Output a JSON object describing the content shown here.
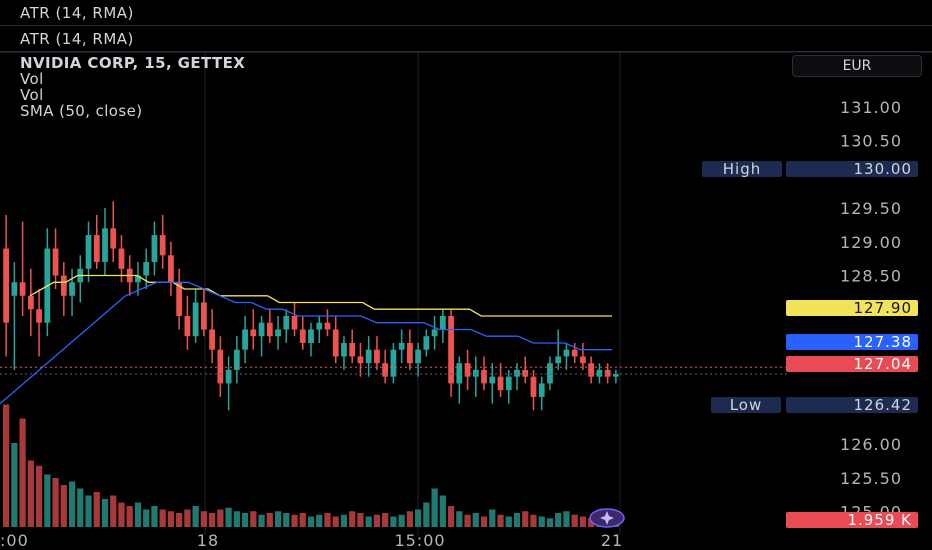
{
  "indicators": {
    "atr_1": "ATR (14, RMA)",
    "atr_2": "ATR (14, RMA)"
  },
  "legend": {
    "symbol": "NVIDIA CORP, 15, GETTEX",
    "vol_1": "Vol",
    "vol_2": "Vol",
    "sma": "SMA (50, close)"
  },
  "currency_button": "EUR",
  "badges": {
    "high_label": "High",
    "high_value": "130.00",
    "low_label": "Low",
    "low_value": "126.42",
    "sma_value": "127.90",
    "ma_value": "127.38",
    "last_value": "127.04",
    "volume_value": "1.959 K"
  },
  "colors": {
    "up": "#26a69a",
    "down": "#ef5350",
    "sma": "#f2e35a",
    "ma_blue": "#2962ff",
    "volume_up": "#1f7a72",
    "volume_down": "#a8393a",
    "badge_high_low": "#1c2b4f",
    "badge_sma": "#f2e35a",
    "badge_ma": "#2962ff",
    "badge_last": "#e84b54"
  },
  "chart_data": {
    "type": "candlestick",
    "y_ticks": [
      "131.00",
      "130.50",
      "129.50",
      "129.00",
      "128.50",
      "127.50",
      "126.00",
      "125.50",
      "125.00"
    ],
    "x_ticks": [
      ":00",
      "18",
      "15:00",
      "21"
    ],
    "ylim": [
      124.8,
      131.4
    ],
    "high": 130.0,
    "low": 126.42,
    "last": 127.04,
    "candles": [
      [
        128.9,
        129.4,
        127.3,
        127.8
      ],
      [
        128.2,
        128.7,
        127.1,
        128.4
      ],
      [
        128.4,
        129.3,
        127.9,
        128.2
      ],
      [
        128.2,
        128.6,
        127.6,
        128.0
      ],
      [
        128.0,
        128.3,
        127.3,
        127.8
      ],
      [
        127.8,
        129.2,
        127.6,
        128.9
      ],
      [
        128.9,
        129.2,
        128.3,
        128.5
      ],
      [
        128.5,
        128.7,
        127.9,
        128.2
      ],
      [
        128.2,
        128.6,
        127.9,
        128.4
      ],
      [
        128.4,
        128.8,
        128.1,
        128.6
      ],
      [
        128.6,
        129.3,
        128.4,
        129.1
      ],
      [
        129.1,
        129.4,
        128.6,
        128.7
      ],
      [
        128.7,
        129.5,
        128.5,
        129.2
      ],
      [
        129.2,
        129.6,
        128.7,
        128.9
      ],
      [
        128.9,
        129.1,
        128.4,
        128.6
      ],
      [
        128.6,
        128.8,
        128.2,
        128.4
      ],
      [
        128.4,
        128.7,
        128.2,
        128.5
      ],
      [
        128.5,
        128.9,
        128.3,
        128.7
      ],
      [
        128.7,
        129.3,
        128.5,
        129.1
      ],
      [
        129.1,
        129.4,
        128.6,
        128.8
      ],
      [
        128.8,
        129.0,
        128.2,
        128.4
      ],
      [
        128.4,
        128.6,
        127.7,
        127.9
      ],
      [
        127.9,
        128.2,
        127.4,
        127.6
      ],
      [
        127.6,
        128.3,
        127.5,
        128.1
      ],
      [
        128.1,
        128.3,
        127.6,
        127.7
      ],
      [
        127.7,
        128.0,
        127.2,
        127.4
      ],
      [
        127.4,
        127.6,
        126.7,
        126.9
      ],
      [
        126.9,
        127.3,
        126.5,
        127.1
      ],
      [
        127.1,
        127.6,
        126.9,
        127.4
      ],
      [
        127.4,
        127.9,
        127.2,
        127.7
      ],
      [
        127.7,
        128.0,
        127.4,
        127.6
      ],
      [
        127.6,
        127.9,
        127.3,
        127.8
      ],
      [
        127.8,
        128.0,
        127.5,
        127.6
      ],
      [
        127.6,
        127.9,
        127.4,
        127.7
      ],
      [
        127.7,
        128.0,
        127.5,
        127.9
      ],
      [
        127.9,
        128.1,
        127.6,
        127.7
      ],
      [
        127.7,
        127.9,
        127.4,
        127.5
      ],
      [
        127.5,
        127.8,
        127.3,
        127.7
      ],
      [
        127.7,
        127.9,
        127.5,
        127.8
      ],
      [
        127.8,
        128.0,
        127.6,
        127.7
      ],
      [
        127.7,
        127.9,
        127.2,
        127.3
      ],
      [
        127.3,
        127.6,
        127.1,
        127.5
      ],
      [
        127.5,
        127.7,
        127.2,
        127.3
      ],
      [
        127.3,
        127.5,
        127.0,
        127.2
      ],
      [
        127.2,
        127.6,
        127.0,
        127.4
      ],
      [
        127.4,
        127.6,
        127.1,
        127.2
      ],
      [
        127.2,
        127.4,
        126.9,
        127.0
      ],
      [
        127.0,
        127.5,
        126.9,
        127.4
      ],
      [
        127.4,
        127.7,
        127.2,
        127.5
      ],
      [
        127.5,
        127.7,
        127.1,
        127.2
      ],
      [
        127.2,
        127.5,
        127.0,
        127.4
      ],
      [
        127.4,
        127.7,
        127.3,
        127.6
      ],
      [
        127.6,
        127.9,
        127.4,
        127.7
      ],
      [
        127.7,
        128.0,
        127.5,
        127.9
      ],
      [
        127.9,
        128.0,
        126.7,
        126.9
      ],
      [
        126.9,
        127.3,
        126.6,
        127.2
      ],
      [
        127.2,
        127.4,
        126.8,
        127.0
      ],
      [
        127.0,
        127.3,
        126.7,
        127.1
      ],
      [
        127.1,
        127.3,
        126.8,
        126.9
      ],
      [
        126.9,
        127.2,
        126.6,
        127.0
      ],
      [
        127.0,
        127.2,
        126.7,
        126.8
      ],
      [
        126.8,
        127.1,
        126.6,
        127.0
      ],
      [
        127.0,
        127.2,
        126.8,
        127.1
      ],
      [
        127.1,
        127.3,
        126.9,
        127.0
      ],
      [
        127.0,
        127.1,
        126.5,
        126.7
      ],
      [
        126.7,
        127.0,
        126.5,
        126.9
      ],
      [
        126.9,
        127.3,
        126.8,
        127.2
      ],
      [
        127.2,
        127.7,
        127.1,
        127.3
      ],
      [
        127.3,
        127.5,
        127.1,
        127.4
      ],
      [
        127.4,
        127.5,
        127.2,
        127.3
      ],
      [
        127.3,
        127.5,
        127.1,
        127.2
      ],
      [
        127.2,
        127.3,
        126.9,
        127.0
      ],
      [
        127.0,
        127.2,
        126.9,
        127.1
      ],
      [
        127.1,
        127.2,
        126.9,
        127.0
      ],
      [
        127.0,
        127.1,
        126.9,
        127.04
      ]
    ],
    "volume": [
      70,
      48,
      62,
      38,
      35,
      30,
      28,
      24,
      26,
      22,
      18,
      20,
      16,
      18,
      14,
      12,
      14,
      10,
      12,
      10,
      9,
      8,
      10,
      12,
      9,
      8,
      10,
      11,
      9,
      8,
      9,
      7,
      8,
      9,
      8,
      7,
      8,
      6,
      7,
      8,
      6,
      7,
      9,
      8,
      6,
      7,
      8,
      6,
      7,
      9,
      10,
      14,
      22,
      18,
      12,
      9,
      7,
      8,
      6,
      10,
      7,
      6,
      8,
      9,
      7,
      6,
      5,
      8,
      9,
      7,
      6,
      5,
      4,
      3,
      3
    ],
    "sma50": [
      128.2,
      128.3,
      128.4,
      128.4,
      128.5,
      128.5,
      128.5,
      128.5,
      128.5,
      128.5,
      128.4,
      128.4,
      128.4,
      128.3,
      128.3,
      128.3,
      128.2,
      128.2,
      128.2,
      128.2,
      128.2,
      128.1,
      128.1,
      128.1,
      128.1,
      128.1,
      128.1,
      128.1,
      128.1,
      128.0,
      128.0,
      128.0,
      128.0,
      128.0,
      128.0,
      128.0,
      128.0,
      128.0,
      127.9,
      127.9,
      127.9,
      127.9,
      127.9,
      127.9,
      127.9,
      127.9,
      127.9,
      127.9,
      127.9,
      127.9
    ],
    "ma_blue": [
      126.6,
      126.8,
      127.0,
      127.2,
      127.4,
      127.6,
      127.8,
      128.0,
      128.2,
      128.3,
      128.4,
      128.4,
      128.4,
      128.3,
      128.2,
      128.1,
      128.1,
      128.0,
      128.0,
      127.9,
      127.9,
      127.9,
      127.9,
      127.9,
      127.8,
      127.8,
      127.8,
      127.8,
      127.7,
      127.7,
      127.7,
      127.6,
      127.6,
      127.6,
      127.5,
      127.5,
      127.5,
      127.4,
      127.4,
      127.4
    ]
  }
}
